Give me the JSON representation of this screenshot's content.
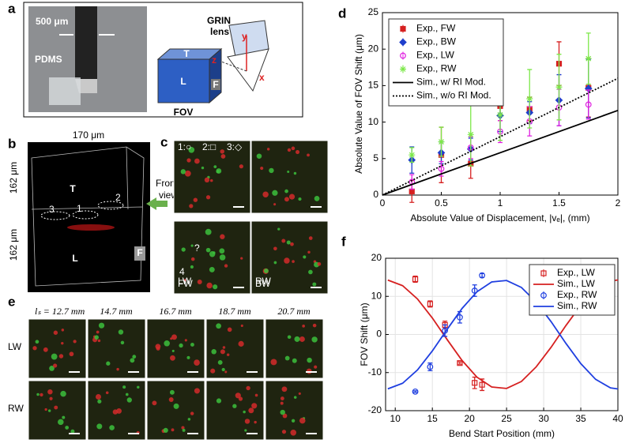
{
  "panels": {
    "a": {
      "label": "a",
      "scale": "500 μm",
      "pdms": "PDMS",
      "grin_lines": [
        "GRIN",
        "lens"
      ],
      "y": "y",
      "z": "z",
      "x": "x",
      "top": "T",
      "left": "L",
      "front": "F",
      "fov": "FOV"
    },
    "b": {
      "label": "b",
      "width": "170 μm",
      "height_top": "162 μm",
      "height_bottom": "162 μm",
      "top": "T",
      "left": "L",
      "front": "F",
      "view_lines": [
        "Front",
        "view"
      ],
      "markers": [
        "1",
        "2",
        "3"
      ]
    },
    "c": {
      "label": "c",
      "legend": [
        "1:○",
        "2:□",
        "3:◇"
      ],
      "images": [
        "LW",
        "RW",
        "FW",
        "BW"
      ],
      "cell": "4",
      "question": "?"
    },
    "e": {
      "label": "e",
      "positions": [
        "lₛ = 12.7 mm",
        "14.7 mm",
        "16.7 mm",
        "18.7 mm",
        "20.7 mm"
      ],
      "rows": [
        "LW",
        "RW"
      ]
    }
  },
  "chart_data": [
    {
      "type": "errorbar",
      "panel_label": "d",
      "xlabel": "Absolute Value of Displacement, |vₑ|, (mm)",
      "ylabel": "Absolute Value of FOV Shift (μm)",
      "xlim": [
        0,
        2
      ],
      "xticks": [
        0,
        0.5,
        1,
        1.5,
        2
      ],
      "ylim": [
        0,
        25
      ],
      "yticks": [
        0,
        5,
        10,
        15,
        20,
        25
      ],
      "grid": false,
      "legend": "upper-left",
      "series": [
        {
          "name": "Exp., FW",
          "color": "#d62020",
          "style": "errorbar",
          "marker": "square",
          "filled": true,
          "x": [
            0.25,
            0.5,
            0.75,
            1,
            1.25,
            1.5,
            1.75
          ],
          "values": [
            0.5,
            5.5,
            4.3,
            12.2,
            11.8,
            18,
            14.7
          ],
          "errors": [
            1.5,
            3.8,
            2,
            2,
            1.6,
            3,
            4
          ]
        },
        {
          "name": "Exp., BW",
          "color": "#1f3fcc",
          "style": "errorbar",
          "marker": "diamond",
          "filled": true,
          "x": [
            0.25,
            0.5,
            0.75,
            1,
            1.25,
            1.5,
            1.75
          ],
          "values": [
            4.8,
            5.8,
            6.3,
            10.9,
            11.3,
            13,
            14.6
          ],
          "errors": [
            1.8,
            1.5,
            1.5,
            2.2,
            1.5,
            3.5,
            4
          ]
        },
        {
          "name": "Exp., LW",
          "color": "#e020e0",
          "style": "errorbar",
          "marker": "circle",
          "filled": false,
          "x": [
            0.25,
            0.5,
            0.75,
            1,
            1.25,
            1.5,
            1.75
          ],
          "values": [
            1.8,
            3.6,
            6.5,
            8.7,
            10.1,
            12,
            12.4
          ],
          "errors": [
            1,
            1,
            1.5,
            1.5,
            2,
            2.5,
            2
          ]
        },
        {
          "name": "Exp., RW",
          "color": "#7de84a",
          "style": "errorbar",
          "marker": "star",
          "filled": true,
          "x": [
            0.25,
            0.5,
            0.75,
            1,
            1.25,
            1.5,
            1.75
          ],
          "values": [
            5.5,
            7.3,
            8.3,
            11,
            13.2,
            14.8,
            18.7
          ],
          "errors": [
            1,
            2,
            4.3,
            3.5,
            4,
            4.5,
            3.5
          ]
        },
        {
          "name": "Sim., w/ RI Mod.",
          "color": "#000000",
          "style": "line",
          "dash": "solid",
          "x": [
            0,
            2
          ],
          "values": [
            0,
            11.6
          ]
        },
        {
          "name": "Sim., w/o RI Mod.",
          "color": "#000000",
          "style": "line",
          "dash": "dotted",
          "x": [
            0,
            2
          ],
          "values": [
            0,
            16
          ]
        }
      ]
    },
    {
      "type": "errorbar",
      "panel_label": "f",
      "xlabel": "Bend Start Position (mm)",
      "ylabel": "FOV Shift (μm)",
      "xlim": [
        8.7,
        40
      ],
      "xticks": [
        10,
        15,
        20,
        25,
        30,
        35,
        40
      ],
      "ylim": [
        -20,
        20
      ],
      "yticks": [
        -20,
        -10,
        0,
        10,
        20
      ],
      "grid": true,
      "legend": "upper-right",
      "series": [
        {
          "name": "Exp., LW",
          "color": "#d62020",
          "style": "errorbar",
          "marker": "square",
          "filled": false,
          "x": [
            12.7,
            14.7,
            16.7,
            18.7,
            20.7,
            21.7
          ],
          "values": [
            14.5,
            8,
            2.5,
            -7.5,
            -12.7,
            -13.2
          ],
          "errors": [
            0.8,
            0.8,
            1,
            0.3,
            1.5,
            1.5
          ]
        },
        {
          "name": "Sim., LW",
          "color": "#d62020",
          "style": "line",
          "dash": "solid",
          "x": [
            9,
            11,
            13,
            15,
            17,
            19,
            21,
            23,
            25,
            27,
            29,
            31,
            33,
            35,
            37,
            39,
            40
          ],
          "values": [
            14.27,
            12.8,
            9.3,
            4.32,
            -1.36,
            -6.82,
            -11.18,
            -13.78,
            -14.17,
            -12.34,
            -8.49,
            -3.36,
            2.35,
            7.65,
            11.78,
            14.02,
            14.3
          ]
        },
        {
          "name": "Exp., RW",
          "color": "#1f3fe0",
          "style": "errorbar",
          "marker": "circle",
          "filled": false,
          "x": [
            12.7,
            14.7,
            16.7,
            18.7,
            20.7,
            21.7
          ],
          "values": [
            -15,
            -8.5,
            1,
            4.5,
            11.5,
            15.5
          ],
          "errors": [
            0.2,
            1,
            1.5,
            1.5,
            1.5,
            0.5
          ]
        },
        {
          "name": "Sim., RW",
          "color": "#1f3fe0",
          "style": "line",
          "dash": "solid",
          "x": [
            9,
            11,
            13,
            15,
            17,
            19,
            21,
            23,
            25,
            27,
            29,
            31,
            33,
            35,
            37,
            39,
            40
          ],
          "values": [
            -14.27,
            -12.8,
            -9.3,
            -4.32,
            1.36,
            6.82,
            11.18,
            13.78,
            14.17,
            12.34,
            8.49,
            3.36,
            -2.35,
            -7.65,
            -11.78,
            -14.02,
            -14.3
          ]
        }
      ]
    }
  ]
}
